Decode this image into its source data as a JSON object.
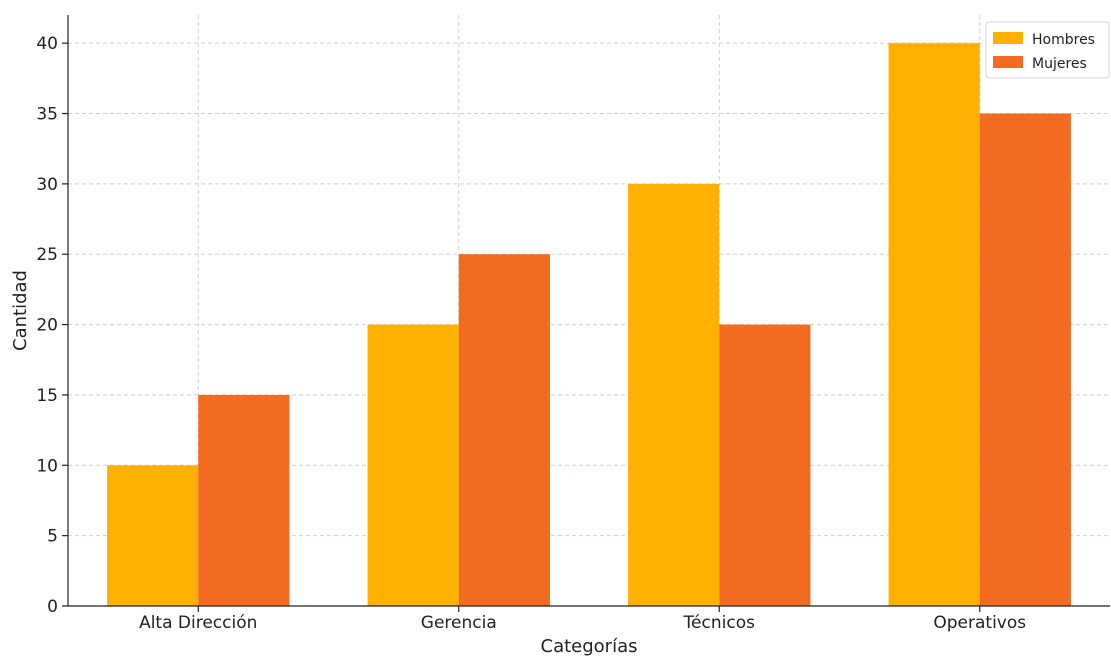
{
  "chart_data": {
    "type": "bar",
    "title": "",
    "xlabel": "Categorías",
    "ylabel": "Cantidad",
    "categories": [
      "Alta Dirección",
      "Gerencia",
      "Técnicos",
      "Operativos"
    ],
    "series": [
      {
        "name": "Hombres",
        "values": [
          10,
          20,
          30,
          40
        ],
        "color": "#FFB000"
      },
      {
        "name": "Mujeres",
        "values": [
          15,
          25,
          20,
          35
        ],
        "color": "#F26B21"
      }
    ],
    "ylim": [
      0,
      42
    ],
    "yticks": [
      0,
      5,
      10,
      15,
      20,
      25,
      30,
      35,
      40
    ],
    "grid": true,
    "legend_position": "top-right"
  }
}
